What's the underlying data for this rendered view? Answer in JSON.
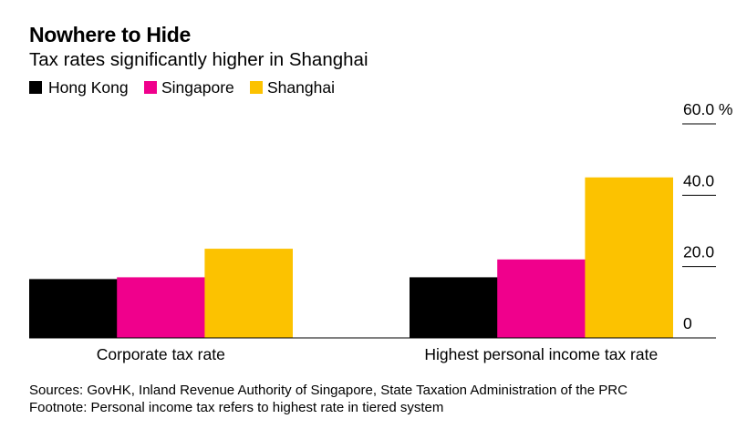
{
  "chart_data": {
    "type": "bar",
    "title": "Nowhere to Hide",
    "subtitle": "Tax rates significantly higher in Shanghai",
    "categories": [
      "Corporate tax rate",
      "Highest personal income tax rate"
    ],
    "series": [
      {
        "name": "Hong Kong",
        "values": [
          16.5,
          17
        ],
        "color": "#000000"
      },
      {
        "name": "Singapore",
        "values": [
          17,
          22
        ],
        "color": "#f0008c"
      },
      {
        "name": "Shanghai",
        "values": [
          25,
          45
        ],
        "color": "#fcc200"
      }
    ],
    "ylim": [
      0,
      60
    ],
    "yticks": [
      {
        "value": 60,
        "label": "60.0 %"
      },
      {
        "value": 40,
        "label": "40.0"
      },
      {
        "value": 20,
        "label": "20.0"
      },
      {
        "value": 0,
        "label": "0"
      }
    ],
    "y_axis_position": "right",
    "legend": "top-left",
    "grid": false
  },
  "source": "Sources: GovHK, Inland Revenue Authority of Singapore, State Taxation Administration of the PRC",
  "footnote": "Footnote: Personal income tax refers to highest rate in tiered system"
}
